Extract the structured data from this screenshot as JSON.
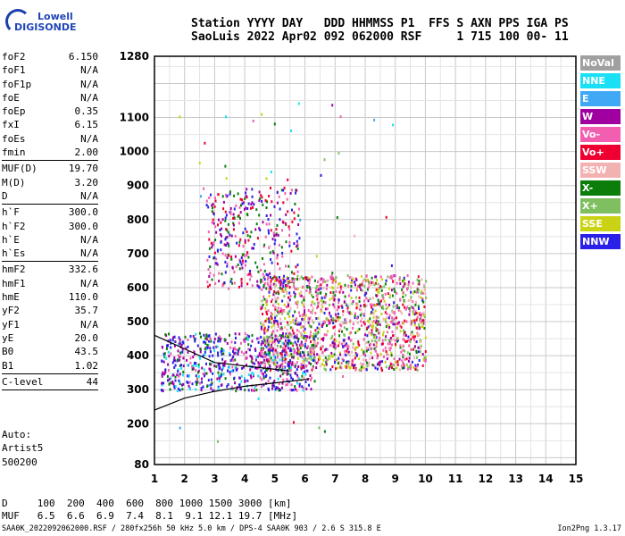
{
  "logo": {
    "line1": "Lowell",
    "line2": "DIGISONDE"
  },
  "header": {
    "line1": "Station YYYY DAY   DDD HHMMSS P1  FFS S AXN PPS IGA PS",
    "line2": "SaoLuis 2022 Apr02 092 062000 RSF     1 715 100 00- 11"
  },
  "params": [
    {
      "label": "foF2",
      "value": "6.150"
    },
    {
      "label": "foF1",
      "value": "N/A"
    },
    {
      "label": "foF1p",
      "value": "N/A"
    },
    {
      "label": "foE",
      "value": "N/A"
    },
    {
      "label": "foEp",
      "value": "0.35"
    },
    {
      "label": "fxI",
      "value": "6.15"
    },
    {
      "label": "foEs",
      "value": "N/A"
    },
    {
      "label": "fmin",
      "value": "2.00"
    },
    {
      "sep": true
    },
    {
      "label": "MUF(D)",
      "value": "19.70"
    },
    {
      "label": "M(D)",
      "value": "3.20"
    },
    {
      "label": "D",
      "value": "N/A"
    },
    {
      "sep": true
    },
    {
      "label": "h`F",
      "value": "300.0"
    },
    {
      "label": "h`F2",
      "value": "300.0"
    },
    {
      "label": "h`E",
      "value": "N/A"
    },
    {
      "label": "h`Es",
      "value": "N/A"
    },
    {
      "sep": true
    },
    {
      "label": "hmF2",
      "value": "332.6"
    },
    {
      "label": "hmF1",
      "value": "N/A"
    },
    {
      "label": "hmE",
      "value": "110.0"
    },
    {
      "label": "yF2",
      "value": "35.7"
    },
    {
      "label": "yF1",
      "value": "N/A"
    },
    {
      "label": "yE",
      "value": "20.0"
    },
    {
      "label": "B0",
      "value": "43.5"
    },
    {
      "label": "B1",
      "value": "1.02"
    },
    {
      "sep": true
    },
    {
      "label": "C-level",
      "value": "44"
    },
    {
      "sep": true
    }
  ],
  "auto": {
    "line1": "Auto:",
    "line2": "Artist5",
    "line3": "500200"
  },
  "footer": {
    "line1": "D     100  200  400  600  800 1000 1500 3000 [km]",
    "line2": "MUF   6.5  6.6  6.9  7.4  8.1  9.1 12.1 19.7 [MHz]",
    "file": "SAA0K_2022092062000.RSF / 280fx256h 50 kHz 5.0 km / DPS-4 SAA0K 903 / 2.6 S 315.8 E",
    "version": "Ion2Png 1.3.17"
  },
  "legend": [
    {
      "label": "NoVal",
      "color": "#a0a0a0"
    },
    {
      "label": "NNE",
      "color": "#19e0f5"
    },
    {
      "label": "E",
      "color": "#3fa9f5"
    },
    {
      "label": "W",
      "color": "#a0009f"
    },
    {
      "label": "Vo-",
      "color": "#f35fb0"
    },
    {
      "label": "Vo+",
      "color": "#ee0030"
    },
    {
      "label": "SSW",
      "color": "#f3b2b2"
    },
    {
      "label": "X-",
      "color": "#0a7d0a"
    },
    {
      "label": "X+",
      "color": "#7fbf5f"
    },
    {
      "label": "SSE",
      "color": "#c9d314"
    },
    {
      "label": "NNW",
      "color": "#2a20e8"
    }
  ],
  "chart_data": {
    "type": "scatter",
    "xlim": [
      1,
      15
    ],
    "ylim": [
      80,
      1280
    ],
    "x_ticks": [
      "1",
      "2",
      "3",
      "4",
      "5",
      "6",
      "7",
      "8",
      "9",
      "10",
      "11",
      "12",
      "13",
      "14",
      "15"
    ],
    "y_ticks": [
      "80",
      "200",
      "300",
      "400",
      "500",
      "600",
      "700",
      "800",
      "900",
      "1000",
      "1100",
      "1280"
    ],
    "y_tick_values": [
      80,
      200,
      300,
      400,
      500,
      600,
      700,
      800,
      900,
      1000,
      1100,
      1280
    ],
    "grid": true,
    "regions": [
      {
        "name": "F-layer main trace",
        "x_range": [
          1.2,
          6.3
        ],
        "y_range": [
          300,
          470
        ]
      },
      {
        "name": "Spread F cloud",
        "x_range": [
          4.5,
          10.0
        ],
        "y_range": [
          360,
          640
        ]
      },
      {
        "name": "Second hop",
        "x_range": [
          2.7,
          5.8
        ],
        "y_range": [
          600,
          900
        ]
      }
    ],
    "profile_curve": {
      "x": [
        1.0,
        2.0,
        3.0,
        4.0,
        5.0,
        6.0,
        6.15
      ],
      "y": [
        240,
        275,
        295,
        310,
        320,
        330,
        332.6
      ]
    },
    "upper_curve": {
      "x": [
        1.0,
        2.0,
        3.0,
        4.0,
        5.0,
        5.5
      ],
      "y": [
        460,
        420,
        380,
        370,
        360,
        355
      ]
    }
  }
}
